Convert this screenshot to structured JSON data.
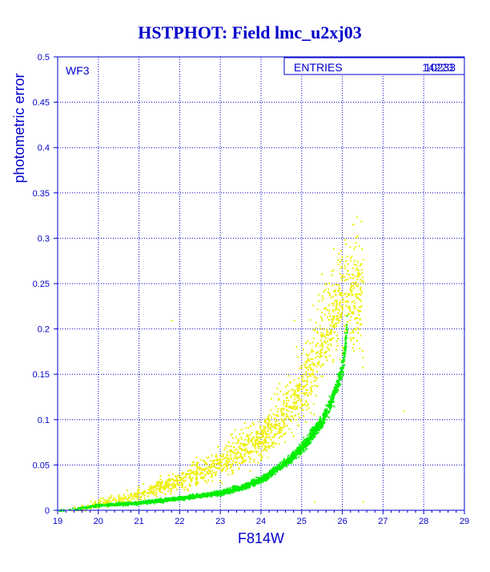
{
  "title": "HSTPHOT: Field lmc_u2xj03",
  "panel_label": "WF3",
  "stats": {
    "label": "ENTRIES",
    "value_a": "10233",
    "value_b": "14223"
  },
  "colors": {
    "title": "#0000cc",
    "axes": "#0000cc",
    "grid": "#0000cc",
    "bright_series": "#00ee00",
    "faint_series": "#eeee00",
    "background": "#ffffff"
  },
  "chart_data": {
    "type": "scatter",
    "title": "HSTPHOT: Field lmc_u2xj03",
    "xlabel": "F814W",
    "ylabel": "photometric error",
    "xlim": [
      19,
      29
    ],
    "ylim": [
      0,
      0.5
    ],
    "xticks": [
      "19",
      "20",
      "21",
      "22",
      "23",
      "24",
      "25",
      "26",
      "27",
      "28",
      "29"
    ],
    "yticks": [
      "0",
      "0.05",
      "0.1",
      "0.15",
      "0.2",
      "0.25",
      "0.3",
      "0.35",
      "0.4",
      "0.45",
      "0.5"
    ],
    "grid": true,
    "series": [
      {
        "color": "#00ee00",
        "x_range": [
          19.0,
          26.1
        ],
        "curve": [
          [
            19.0,
            0.0
          ],
          [
            20.0,
            0.006
          ],
          [
            21.0,
            0.009
          ],
          [
            22.0,
            0.014
          ],
          [
            23.0,
            0.02
          ],
          [
            23.5,
            0.026
          ],
          [
            24.0,
            0.035
          ],
          [
            24.5,
            0.05
          ],
          [
            25.0,
            0.07
          ],
          [
            25.5,
            0.1
          ],
          [
            25.8,
            0.13
          ],
          [
            26.0,
            0.16
          ],
          [
            26.1,
            0.2
          ]
        ],
        "count": 10233
      },
      {
        "color": "#eeee00",
        "x_range": [
          19.2,
          26.5
        ],
        "curve": [
          [
            19.5,
            0.002
          ],
          [
            20.0,
            0.008
          ],
          [
            21.0,
            0.015
          ],
          [
            22.0,
            0.03
          ],
          [
            23.0,
            0.045
          ],
          [
            23.5,
            0.06
          ],
          [
            24.0,
            0.07
          ],
          [
            24.5,
            0.09
          ],
          [
            25.0,
            0.12
          ],
          [
            25.5,
            0.17
          ],
          [
            26.0,
            0.21
          ]
        ],
        "count": 14223
      }
    ]
  }
}
